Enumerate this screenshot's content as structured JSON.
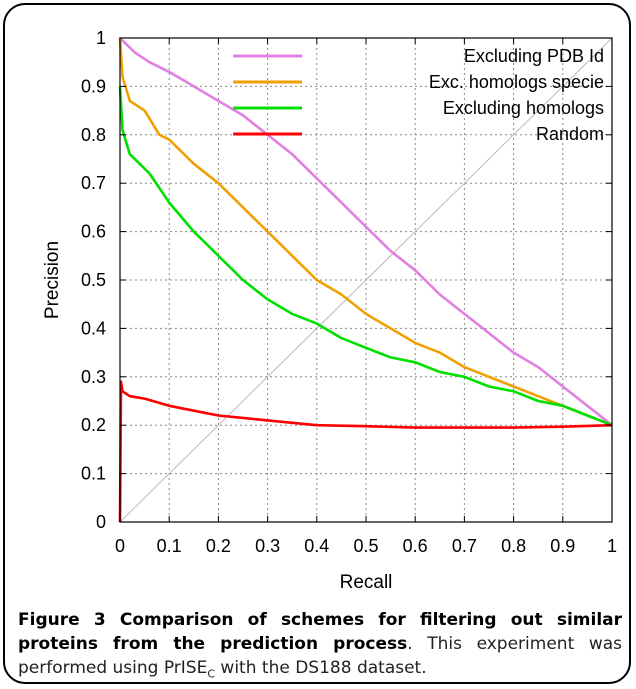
{
  "chart_data": {
    "type": "line",
    "title": "",
    "xlabel": "Recall",
    "ylabel": "Precision",
    "xlim": [
      0,
      1
    ],
    "ylim": [
      0,
      1
    ],
    "xticks": [
      0,
      0.1,
      0.2,
      0.3,
      0.4,
      0.5,
      0.6,
      0.7,
      0.8,
      0.9,
      1
    ],
    "yticks": [
      0,
      0.1,
      0.2,
      0.3,
      0.4,
      0.5,
      0.6,
      0.7,
      0.8,
      0.9,
      1
    ],
    "xtick_labels": [
      "0",
      "0.1",
      "0.2",
      "0.3",
      "0.4",
      "0.5",
      "0.6",
      "0.7",
      "0.8",
      "0.9",
      "1"
    ],
    "ytick_labels": [
      "0",
      "0.1",
      "0.2",
      "0.3",
      "0.4",
      "0.5",
      "0.6",
      "0.7",
      "0.8",
      "0.9",
      "1"
    ],
    "grid": true,
    "legend_position": "top-right",
    "diagonal_reference": true,
    "series": [
      {
        "name": "Excluding PDB Id",
        "color": "#e080e0",
        "x": [
          0,
          0.01,
          0.03,
          0.06,
          0.1,
          0.15,
          0.2,
          0.25,
          0.3,
          0.35,
          0.4,
          0.45,
          0.5,
          0.55,
          0.6,
          0.65,
          0.7,
          0.75,
          0.8,
          0.85,
          0.9,
          0.95,
          1.0
        ],
        "y": [
          1.0,
          0.99,
          0.97,
          0.95,
          0.93,
          0.9,
          0.87,
          0.84,
          0.8,
          0.76,
          0.71,
          0.66,
          0.61,
          0.56,
          0.52,
          0.47,
          0.43,
          0.39,
          0.35,
          0.32,
          0.28,
          0.24,
          0.2
        ]
      },
      {
        "name": "Exc. homologs specie",
        "color": "#f0a000",
        "x": [
          0,
          0.005,
          0.02,
          0.05,
          0.08,
          0.1,
          0.15,
          0.2,
          0.25,
          0.3,
          0.35,
          0.4,
          0.45,
          0.5,
          0.55,
          0.6,
          0.65,
          0.7,
          0.75,
          0.8,
          0.85,
          0.9,
          0.95,
          1.0
        ],
        "y": [
          1.0,
          0.92,
          0.87,
          0.85,
          0.8,
          0.79,
          0.74,
          0.7,
          0.65,
          0.6,
          0.55,
          0.5,
          0.47,
          0.43,
          0.4,
          0.37,
          0.35,
          0.32,
          0.3,
          0.28,
          0.26,
          0.24,
          0.22,
          0.2
        ]
      },
      {
        "name": "Excluding homologs",
        "color": "#00e000",
        "x": [
          0,
          0.005,
          0.02,
          0.04,
          0.06,
          0.08,
          0.1,
          0.15,
          0.2,
          0.25,
          0.3,
          0.35,
          0.4,
          0.45,
          0.5,
          0.55,
          0.6,
          0.65,
          0.7,
          0.75,
          0.8,
          0.85,
          0.9,
          0.95,
          1.0
        ],
        "y": [
          0.9,
          0.81,
          0.76,
          0.74,
          0.72,
          0.69,
          0.66,
          0.6,
          0.55,
          0.5,
          0.46,
          0.43,
          0.41,
          0.38,
          0.36,
          0.34,
          0.33,
          0.31,
          0.3,
          0.28,
          0.27,
          0.25,
          0.24,
          0.22,
          0.2
        ]
      },
      {
        "name": "Random",
        "color": "#ff0000",
        "x": [
          0,
          0.002,
          0.005,
          0.02,
          0.05,
          0.1,
          0.15,
          0.2,
          0.25,
          0.3,
          0.35,
          0.4,
          0.5,
          0.6,
          0.7,
          0.8,
          0.9,
          1.0
        ],
        "y": [
          0.0,
          0.29,
          0.27,
          0.26,
          0.255,
          0.24,
          0.23,
          0.22,
          0.215,
          0.21,
          0.205,
          0.2,
          0.198,
          0.195,
          0.195,
          0.195,
          0.197,
          0.2
        ]
      }
    ]
  },
  "caption": {
    "figure_label": "Figure 3",
    "title": "Comparison of schemes for filtering out similar proteins from the prediction process",
    "text_before_sub": ". This experiment was performed using PrISE",
    "subscript": "C",
    "text_after_sub": " with the DS188 dataset."
  }
}
